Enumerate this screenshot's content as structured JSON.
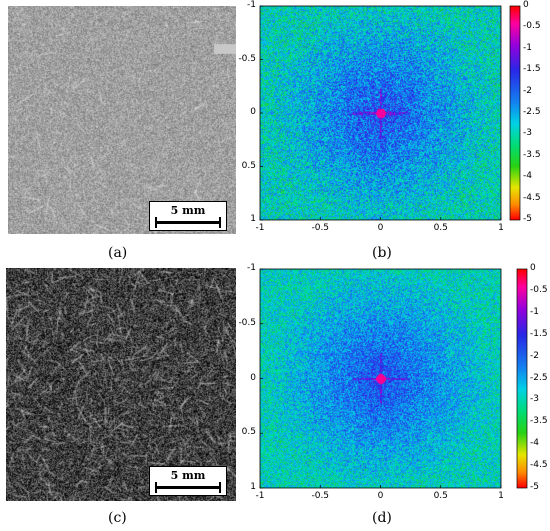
{
  "panels": {
    "a": {
      "label": "(a)",
      "scale_bar": "5 mm"
    },
    "b": {
      "label": "(b)"
    },
    "c": {
      "label": "(c)",
      "scale_bar": "5 mm"
    },
    "d": {
      "label": "(d)"
    }
  },
  "chart_data": [
    {
      "type": "heatmap",
      "panel": "(b)",
      "title": "",
      "x_ticks": [
        "-1",
        "-0.5",
        "0",
        "0.5",
        "1"
      ],
      "y_ticks": [
        "-1",
        "-0.5",
        "0",
        "0.5",
        "1"
      ],
      "xlim": [
        -1,
        1
      ],
      "ylim": [
        -1,
        1
      ],
      "y_reversed": true,
      "colorbar_ticks": [
        "0",
        "-0.5",
        "-1",
        "-1.5",
        "-2",
        "-2.5",
        "-3",
        "-3.5",
        "-4",
        "-4.5",
        "-5"
      ],
      "colorbar_range": [
        -5,
        0
      ],
      "peak": {
        "x": 0,
        "y": 0
      }
    },
    {
      "type": "heatmap",
      "panel": "(d)",
      "title": "",
      "x_ticks": [
        "-1",
        "-0.5",
        "0",
        "0.5",
        "1"
      ],
      "y_ticks": [
        "-1",
        "-0.5",
        "0",
        "0.5",
        "1"
      ],
      "xlim": [
        -1,
        1
      ],
      "ylim": [
        -1,
        1
      ],
      "y_reversed": true,
      "colorbar_ticks": [
        "0",
        "-0.5",
        "-1",
        "-1.5",
        "-2",
        "-2.5",
        "-3",
        "-3.5",
        "-4",
        "-4.5",
        "-5"
      ],
      "colorbar_range": [
        -5,
        0
      ],
      "peak": {
        "x": 0,
        "y": 0
      }
    }
  ]
}
